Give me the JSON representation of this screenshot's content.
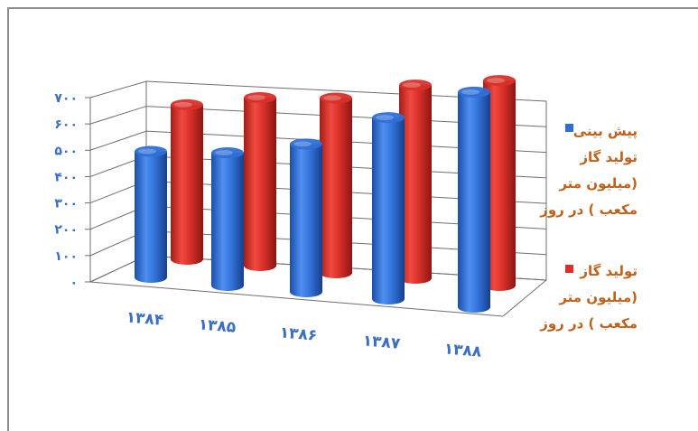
{
  "colors": {
    "frame": "#8c8c8c",
    "axis_text": "#3a6fc4",
    "legend_text": "#c0601a",
    "grid": "#6f6f6f",
    "blue": "#2f6fd6",
    "red": "#d9302a"
  },
  "chart_data": {
    "type": "bar",
    "three_d": true,
    "title": "",
    "xlabel": "",
    "ylabel": "",
    "ylim": [
      0,
      700
    ],
    "yticks": [
      "۰",
      "۱۰۰",
      "۲۰۰",
      "۳۰۰",
      "۴۰۰",
      "۵۰۰",
      "۶۰۰",
      "۷۰۰"
    ],
    "grid": true,
    "legend_position": "right",
    "categories": [
      "۱۳۸۴",
      "۱۳۸۵",
      "۱۳۸۶",
      "۱۳۸۷",
      "۱۳۸۸"
    ],
    "series": [
      {
        "name": "پیش بینی تولید گاز (میلیون متر مکعب ) در روز",
        "legend_lines": [
          "پیش بینی",
          "تولید گاز",
          "(میلیون متر",
          "مکعب ) در روز"
        ],
        "color": "blue",
        "values": [
          375,
          395,
          440,
          540,
          640
        ]
      },
      {
        "name": "تولید گاز (میلیون متر مکعب ) در روز",
        "legend_lines": [
          "تولید گاز",
          "(میلیون متر",
          "مکعب ) در روز"
        ],
        "color": "red",
        "values": [
          460,
          500,
          520,
          575,
          610
        ]
      }
    ]
  }
}
